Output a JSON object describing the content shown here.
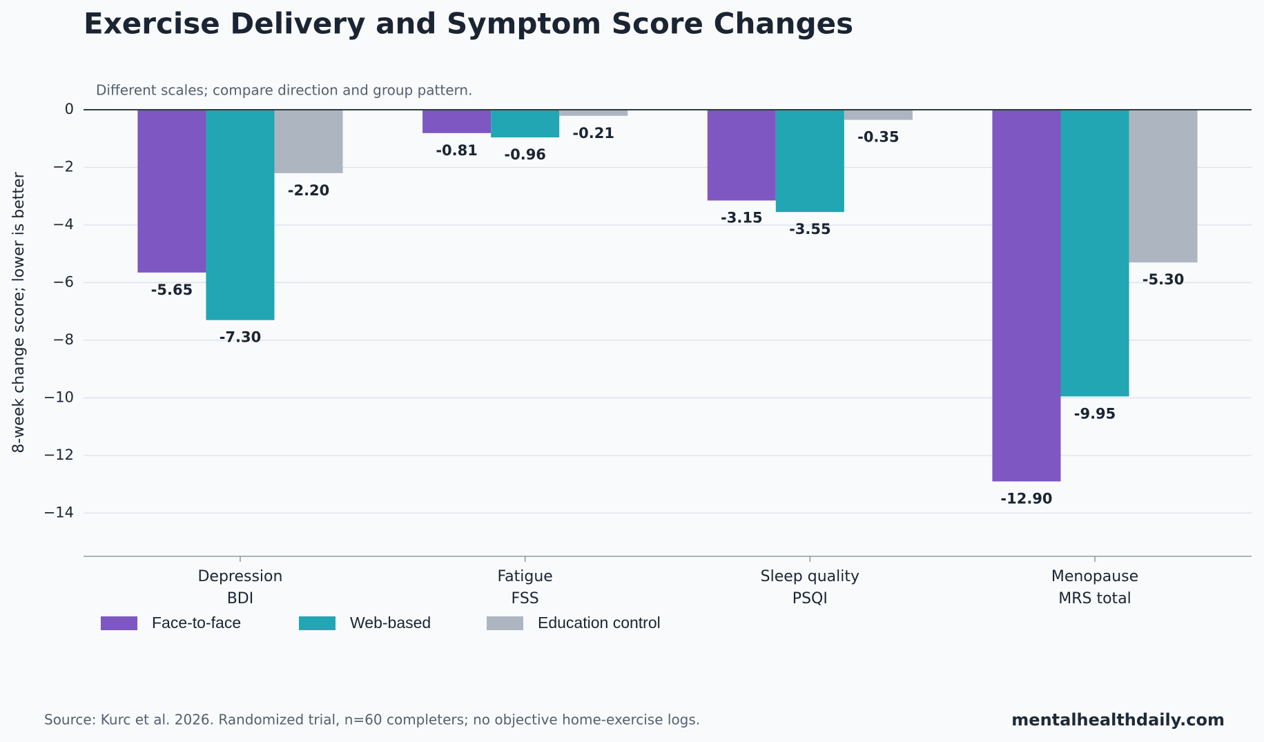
{
  "chart_data": {
    "type": "bar",
    "title": "Exercise Delivery and Symptom Score Changes",
    "subtitle": "Different scales; compare direction and group pattern.",
    "y_label": "8-week change score; lower is better",
    "categories": [
      "Depression\nBDI",
      "Fatigue\nFSS",
      "Sleep quality\nPSQI",
      "Menopause\nMRS total"
    ],
    "series": [
      {
        "name": "Face-to-face",
        "color": "#7e57c2",
        "values": [
          -5.65,
          -0.81,
          -3.15,
          -12.9
        ],
        "value_labels": [
          "-5.65",
          "-0.81",
          "-3.15",
          "-12.90"
        ]
      },
      {
        "name": "Web-based",
        "color": "#22a6b3",
        "values": [
          -7.3,
          -0.96,
          -3.55,
          -9.95
        ],
        "value_labels": [
          "-7.30",
          "-0.96",
          "-3.55",
          "-9.95"
        ]
      },
      {
        "name": "Education control",
        "color": "#adb5c1",
        "values": [
          -2.2,
          -0.21,
          -0.35,
          -5.3
        ],
        "value_labels": [
          "-2.20",
          "-0.21",
          "-0.35",
          "-5.30"
        ]
      }
    ],
    "ylim": [
      -15.5,
      0
    ],
    "yticks": [
      {
        "value": -14,
        "label": "−14"
      },
      {
        "value": -12,
        "label": "−12"
      },
      {
        "value": -10,
        "label": "−10"
      },
      {
        "value": -8,
        "label": "−8"
      },
      {
        "value": -6,
        "label": "−6"
      },
      {
        "value": -4,
        "label": "−4"
      },
      {
        "value": -2,
        "label": "−2"
      },
      0
    ],
    "grid": true,
    "legend": "bottom-left",
    "source": "Source: Kurc et al. 2026. Randomized trial, n=60 completers; no objective home-exercise logs.",
    "watermark": "mentalhealthdaily.com"
  }
}
